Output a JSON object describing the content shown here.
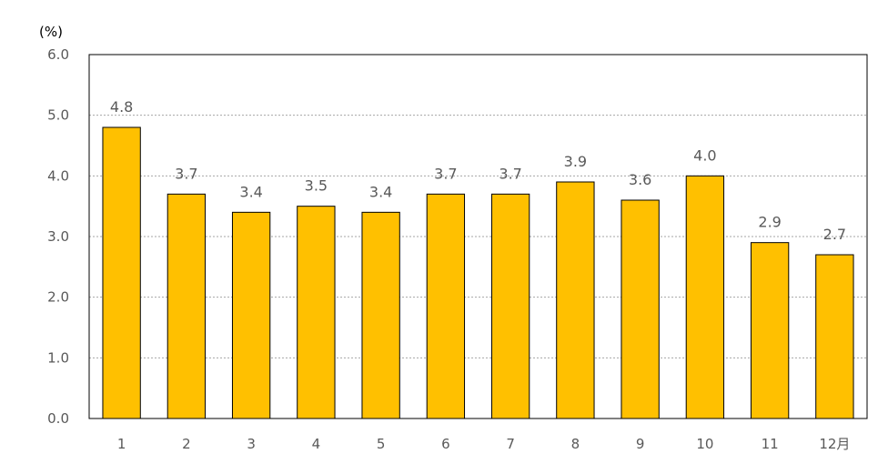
{
  "chart_data": {
    "type": "bar",
    "y_unit": "(%)",
    "categories": [
      "1",
      "2",
      "3",
      "4",
      "5",
      "6",
      "7",
      "8",
      "9",
      "10",
      "11",
      "12月"
    ],
    "values": [
      4.8,
      3.7,
      3.4,
      3.5,
      3.4,
      3.7,
      3.7,
      3.9,
      3.6,
      4.0,
      2.9,
      2.7
    ],
    "data_labels": [
      "4.8",
      "3.7",
      "3.4",
      "3.5",
      "3.4",
      "3.7",
      "3.7",
      "3.9",
      "3.6",
      "4.0",
      "2.9",
      "2.7"
    ],
    "y_ticks": [
      "0.0",
      "1.0",
      "2.0",
      "3.0",
      "4.0",
      "5.0",
      "6.0"
    ],
    "ylim": [
      0,
      6
    ],
    "grid": "horizontal-dotted",
    "legend": "none",
    "bar_color": "#FFC000",
    "bar_edge": "#000000"
  }
}
